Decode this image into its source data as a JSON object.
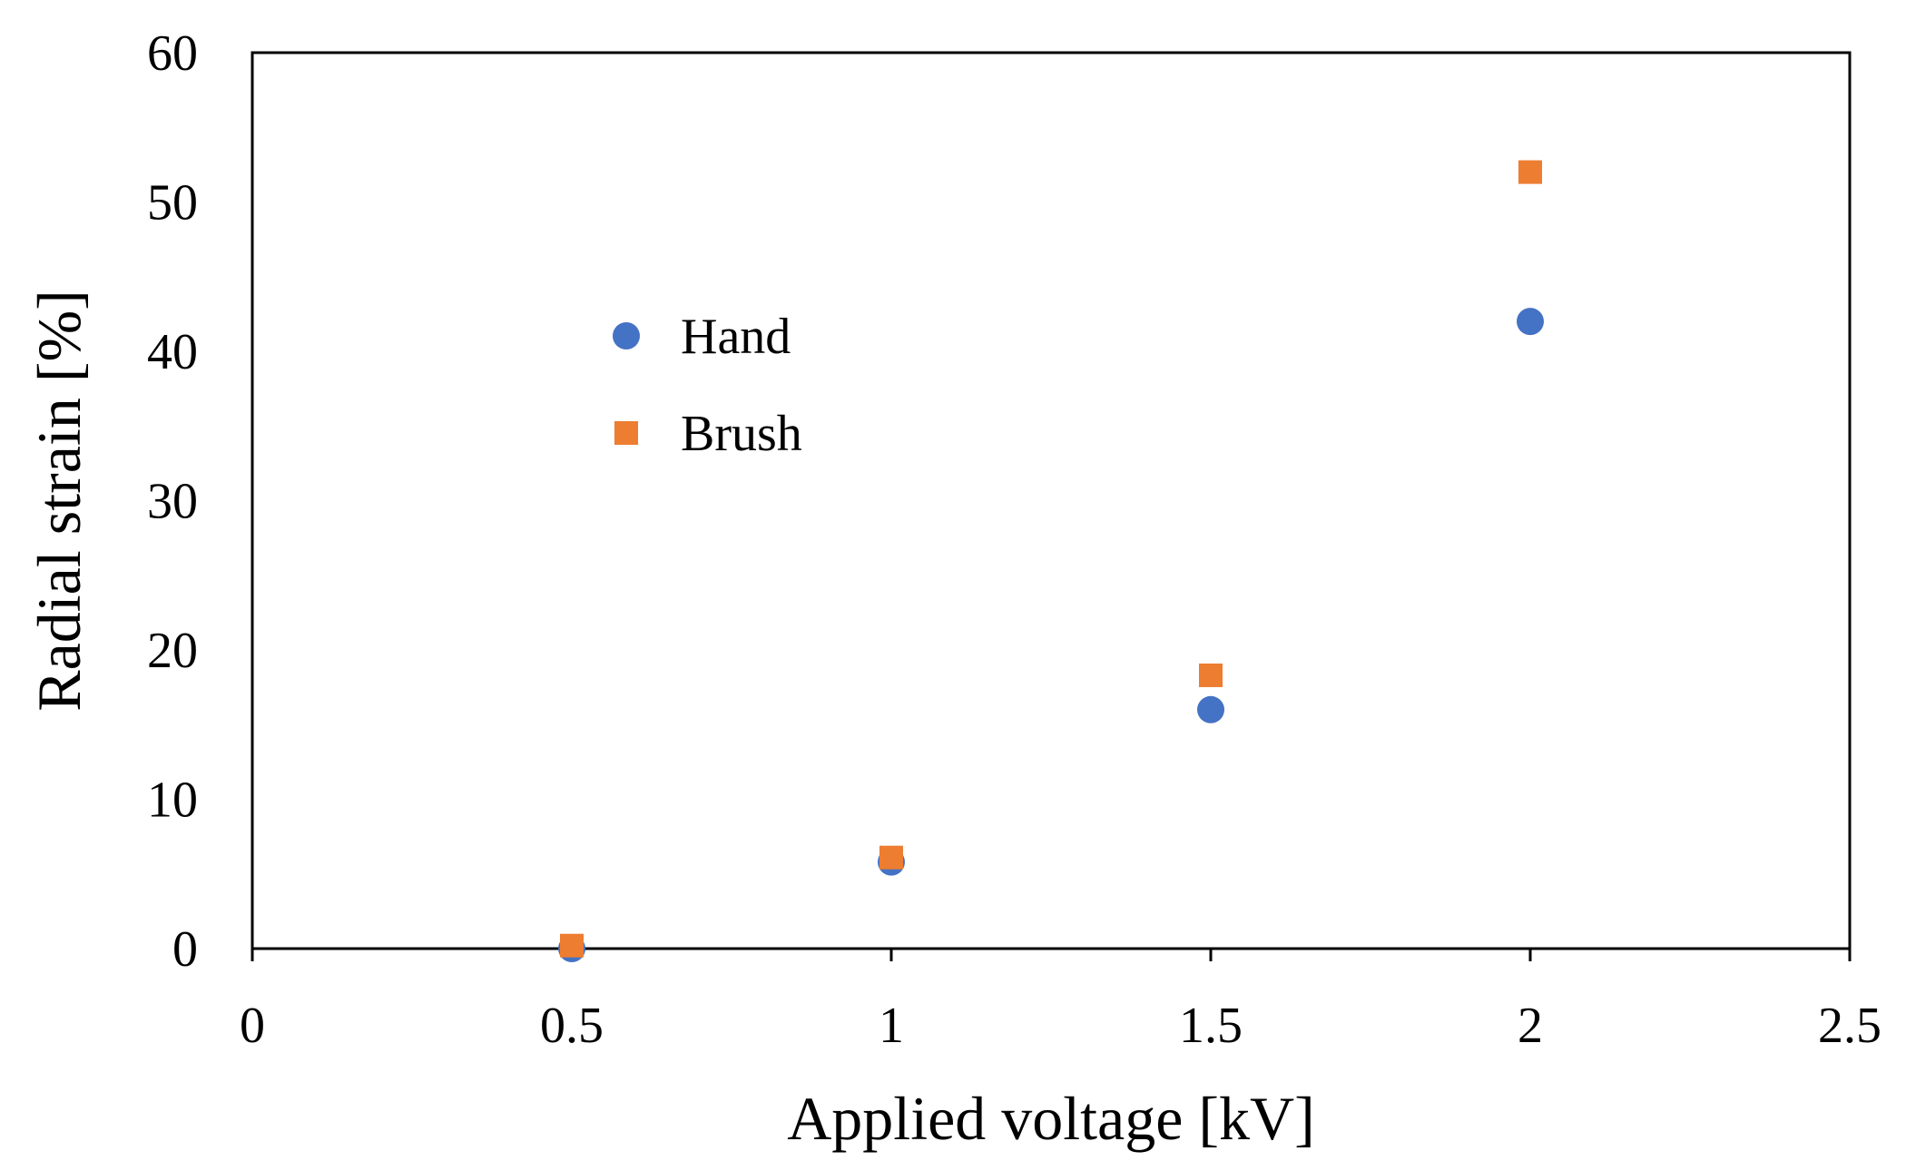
{
  "chart_data": {
    "type": "scatter",
    "title": "",
    "xlabel": "Applied voltage [kV]",
    "ylabel": "Radial strain [%]",
    "xlim": [
      0,
      2.5
    ],
    "ylim": [
      0,
      60
    ],
    "xticks": [
      0,
      0.5,
      1,
      1.5,
      2,
      2.5
    ],
    "yticks": [
      0,
      10,
      20,
      30,
      40,
      50,
      60
    ],
    "xtick_labels": [
      "0",
      "0.5",
      "1",
      "1.5",
      "2",
      "2.5"
    ],
    "ytick_labels": [
      "0",
      "10",
      "20",
      "30",
      "40",
      "50",
      "60"
    ],
    "grid": false,
    "legend_position": "upper-left inside plot",
    "series": [
      {
        "name": "Hand",
        "marker": "circle",
        "color": "#4472C4",
        "x": [
          0.5,
          1.0,
          1.5,
          2.0
        ],
        "y": [
          0,
          5.8,
          16,
          42
        ]
      },
      {
        "name": "Brush",
        "marker": "square",
        "color": "#ED7D31",
        "x": [
          0.5,
          1.0,
          1.5,
          2.0
        ],
        "y": [
          0.2,
          6.1,
          18.3,
          52
        ]
      }
    ]
  }
}
